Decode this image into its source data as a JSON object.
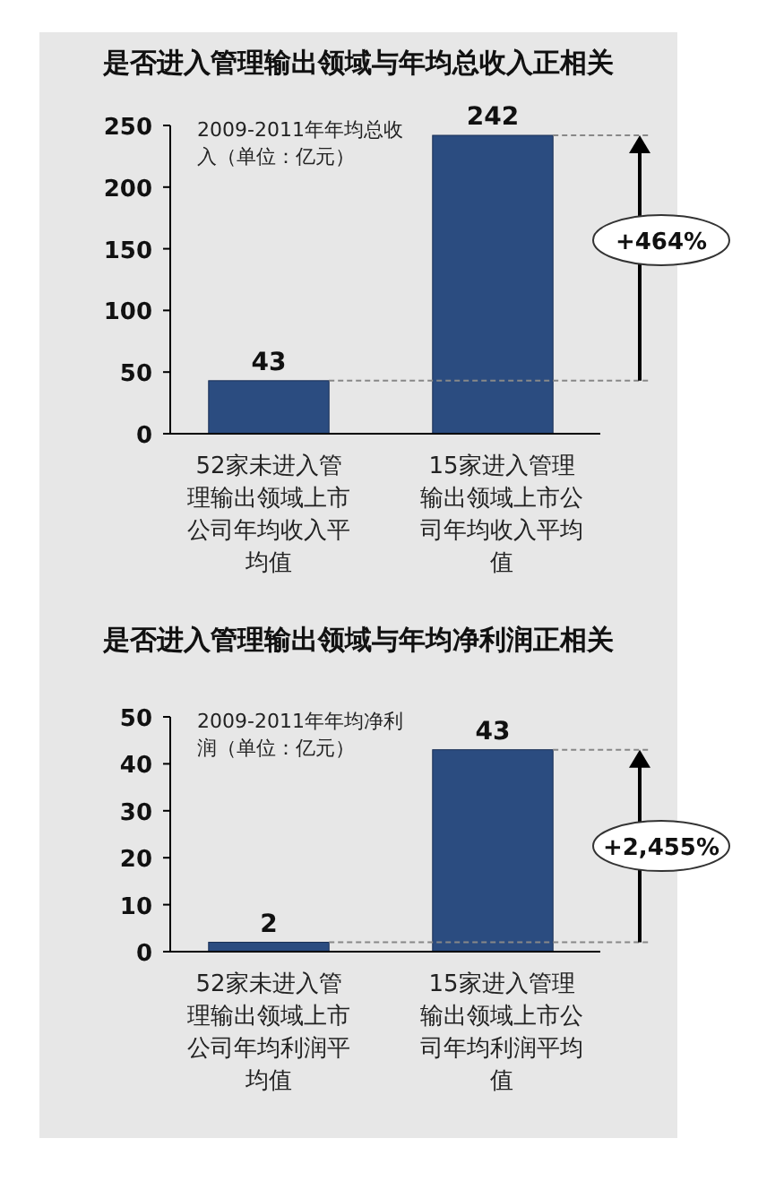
{
  "chart_data": [
    {
      "type": "bar",
      "title": "是否进入管理输出领域与年均总收入正相关",
      "subtitle": "2009-2011年年均总收入（单位：亿元）",
      "categories": [
        "52家未进入管理输出领域上市公司年均收入平均值",
        "15家进入管理输出领域上市公司年均收入平均值"
      ],
      "values": [
        43,
        242
      ],
      "color": "#2b4c80",
      "data_labels": true,
      "ylim": [
        0,
        250
      ],
      "yticks": [
        0,
        50,
        100,
        150,
        200,
        250
      ],
      "ref_lines": [
        {
          "axis": "y",
          "value": 43,
          "line_style": "dashed",
          "color": "#888888"
        },
        {
          "axis": "y",
          "value": 242,
          "line_style": "dashed",
          "color": "#888888"
        }
      ],
      "annotations": [
        "+464%"
      ]
    },
    {
      "type": "bar",
      "title": "是否进入管理输出领域与年均净利润正相关",
      "subtitle": "2009-2011年年均净利润（单位：亿元）",
      "categories": [
        "52家未进入管理输出领域上市公司年均利润平均值",
        "15家进入管理输出领域上市公司年均利润平均值"
      ],
      "values": [
        2,
        43
      ],
      "color": "#2b4c80",
      "data_labels": true,
      "ylim": [
        0,
        50
      ],
      "yticks": [
        0,
        10,
        20,
        30,
        40,
        50
      ],
      "ref_lines": [
        {
          "axis": "y",
          "value": 2,
          "line_style": "dashed",
          "color": "#888888"
        },
        {
          "axis": "y",
          "value": 43,
          "line_style": "dashed",
          "color": "#888888"
        }
      ],
      "annotations": [
        "+2,455%"
      ]
    }
  ]
}
